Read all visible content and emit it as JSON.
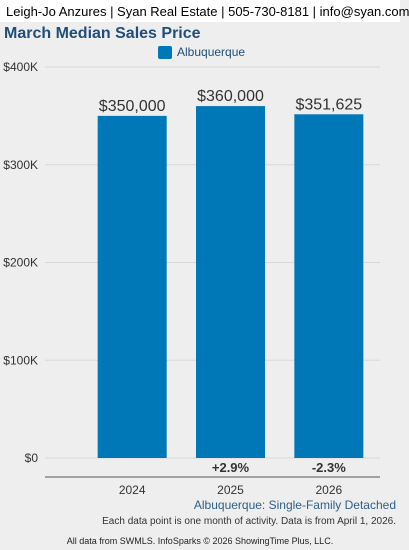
{
  "header": {
    "agent_info": "Leigh-Jo Anzures | Syan Real Estate | 505-730-8181 | info@syan.com"
  },
  "colors": {
    "bar": "#0077b6",
    "title": "#1f4e7a",
    "grid": "#d8d8d8",
    "axis": "#555555"
  },
  "chart_data": {
    "type": "bar",
    "title": "March Median Sales Price",
    "xlabel": "",
    "ylabel": "",
    "categories": [
      "2024",
      "2025",
      "2026"
    ],
    "series": [
      {
        "name": "Albuquerque",
        "values": [
          350000,
          360000,
          351625
        ]
      }
    ],
    "value_labels": [
      "$350,000",
      "$360,000",
      "$351,625"
    ],
    "change_labels": [
      "",
      "+2.9%",
      "-2.3%"
    ],
    "ylim": [
      0,
      400000
    ],
    "yticks": [
      0,
      100000,
      200000,
      300000,
      400000
    ],
    "ytick_labels": [
      "$0",
      "$100K",
      "$200K",
      "$300K",
      "$400K"
    ],
    "grid": true,
    "legend_position": "top-center"
  },
  "footer": {
    "series_description": "Albuquerque: Single-Family Detached",
    "note": "Each data point is one month of activity. Data is from April 1, 2026.",
    "source": "All data from SWMLS. InfoSparks © 2026 ShowingTime Plus, LLC."
  }
}
